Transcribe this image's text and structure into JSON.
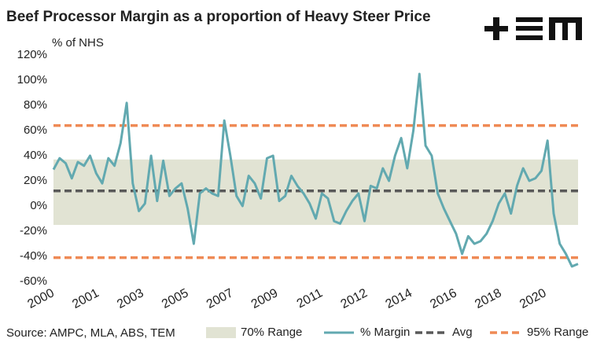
{
  "chart_data": {
    "type": "line",
    "title": "Beef Processor Margin as a proportion of Heavy Steer Price",
    "y_label": "% of NHS",
    "source": "Source: AMPC, MLA, ABS, TEM",
    "xlim": [
      2000,
      2021.5
    ],
    "xticks": [
      2000,
      {
        "value": 2001.833,
        "label": "2001"
      },
      {
        "value": 2003.667,
        "label": "2003"
      },
      {
        "value": 2005.5,
        "label": "2005"
      },
      {
        "value": 2007.333,
        "label": "2007"
      },
      {
        "value": 2009.167,
        "label": "2009"
      },
      2011,
      {
        "value": 2012.833,
        "label": "2012"
      },
      {
        "value": 2014.667,
        "label": "2014"
      },
      {
        "value": 2016.5,
        "label": "2016"
      },
      {
        "value": 2018.333,
        "label": "2018"
      },
      {
        "value": 2020.167,
        "label": "2020"
      }
    ],
    "ylim": [
      -60,
      120
    ],
    "yticks": [
      {
        "value": -60,
        "label": "-60%"
      },
      {
        "value": -40,
        "label": "-40%"
      },
      {
        "value": -20,
        "label": "-20%"
      },
      {
        "value": 0,
        "label": "0%"
      },
      {
        "value": 20,
        "label": "20%"
      },
      {
        "value": 40,
        "label": "40%"
      },
      {
        "value": 60,
        "label": "60%"
      },
      {
        "value": 80,
        "label": "80%"
      },
      {
        "value": 100,
        "label": "100%"
      },
      {
        "value": 120,
        "label": "120%"
      }
    ],
    "bands": [
      {
        "name": "70% Range",
        "color": "#e1e3d3",
        "low": -15,
        "high": 37
      }
    ],
    "series": [
      {
        "name": "% Margin",
        "color": "#62a9b0",
        "x": [
          2000,
          2000.25,
          2000.5,
          2000.75,
          2001,
          2001.25,
          2001.5,
          2001.75,
          2002,
          2002.25,
          2002.5,
          2002.75,
          2003,
          2003.25,
          2003.5,
          2003.75,
          2004,
          2004.25,
          2004.5,
          2004.75,
          2005,
          2005.25,
          2005.5,
          2005.75,
          2006,
          2006.25,
          2006.5,
          2006.75,
          2007,
          2007.25,
          2007.5,
          2007.75,
          2008,
          2008.25,
          2008.5,
          2008.75,
          2009,
          2009.25,
          2009.5,
          2009.75,
          2010,
          2010.25,
          2010.5,
          2010.75,
          2011,
          2011.25,
          2011.5,
          2011.75,
          2012,
          2012.25,
          2012.5,
          2012.75,
          2013,
          2013.25,
          2013.5,
          2013.75,
          2014,
          2014.25,
          2014.5,
          2014.75,
          2015,
          2015.25,
          2015.5,
          2015.75,
          2016,
          2016.25,
          2016.5,
          2016.75,
          2017,
          2017.25,
          2017.5,
          2017.75,
          2018,
          2018.25,
          2018.5,
          2018.75,
          2019,
          2019.25,
          2019.5,
          2019.75,
          2020,
          2020.25,
          2020.5,
          2020.75,
          2021,
          2021.25,
          2021.5
        ],
        "values": [
          29,
          38,
          34,
          22,
          35,
          32,
          40,
          26,
          18,
          38,
          32,
          50,
          82,
          18,
          -4,
          2,
          40,
          4,
          36,
          8,
          14,
          18,
          -2,
          -30,
          10,
          14,
          10,
          8,
          68,
          40,
          8,
          0,
          24,
          18,
          6,
          38,
          40,
          4,
          8,
          24,
          16,
          10,
          2,
          -10,
          10,
          6,
          -12,
          -14,
          -4,
          4,
          10,
          -12,
          16,
          14,
          30,
          20,
          40,
          54,
          30,
          60,
          105,
          48,
          40,
          10,
          -2,
          -12,
          -22,
          -38,
          -24,
          -30,
          -28,
          -22,
          -12,
          2,
          10,
          -6,
          16,
          30,
          20,
          22,
          28,
          52,
          -6,
          -30,
          -38,
          -48,
          -46
        ]
      }
    ],
    "reference_lines": [
      {
        "name": "Avg",
        "color": "#595959",
        "values": [
          12
        ]
      },
      {
        "name": "95% Range",
        "color": "#ef8a55",
        "values": [
          64,
          -41
        ]
      }
    ]
  }
}
